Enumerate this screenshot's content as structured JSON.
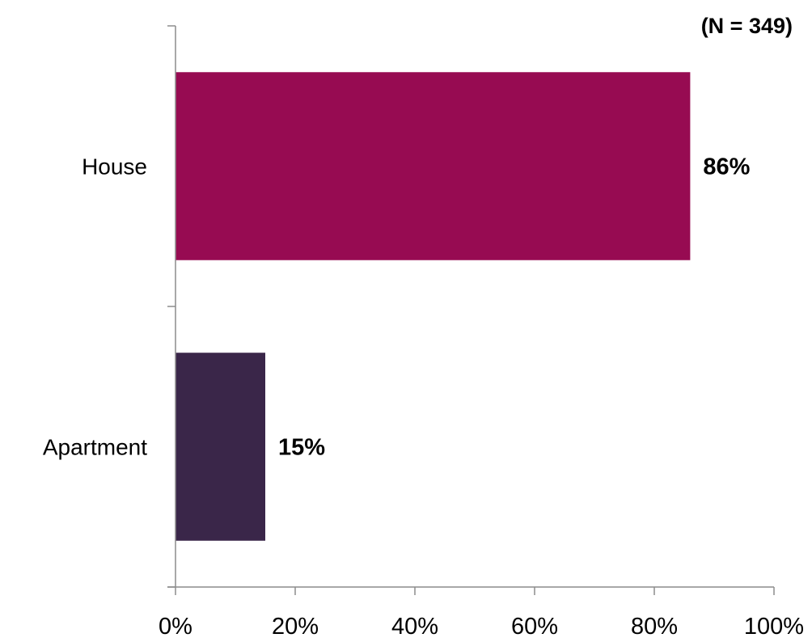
{
  "note": "(N = 349)",
  "chart_data": {
    "type": "bar",
    "orientation": "horizontal",
    "categories": [
      "House",
      "Apartment"
    ],
    "values": [
      86,
      15
    ],
    "data_labels": [
      "86%",
      "15%"
    ],
    "colors": [
      "#970b52",
      "#3a2649"
    ],
    "xlim": [
      0,
      100
    ],
    "x_ticks": [
      0,
      20,
      40,
      60,
      80,
      100
    ],
    "x_tick_labels": [
      "0%",
      "20%",
      "40%",
      "60%",
      "80%",
      "100%"
    ],
    "grid": false,
    "legend": "none"
  }
}
